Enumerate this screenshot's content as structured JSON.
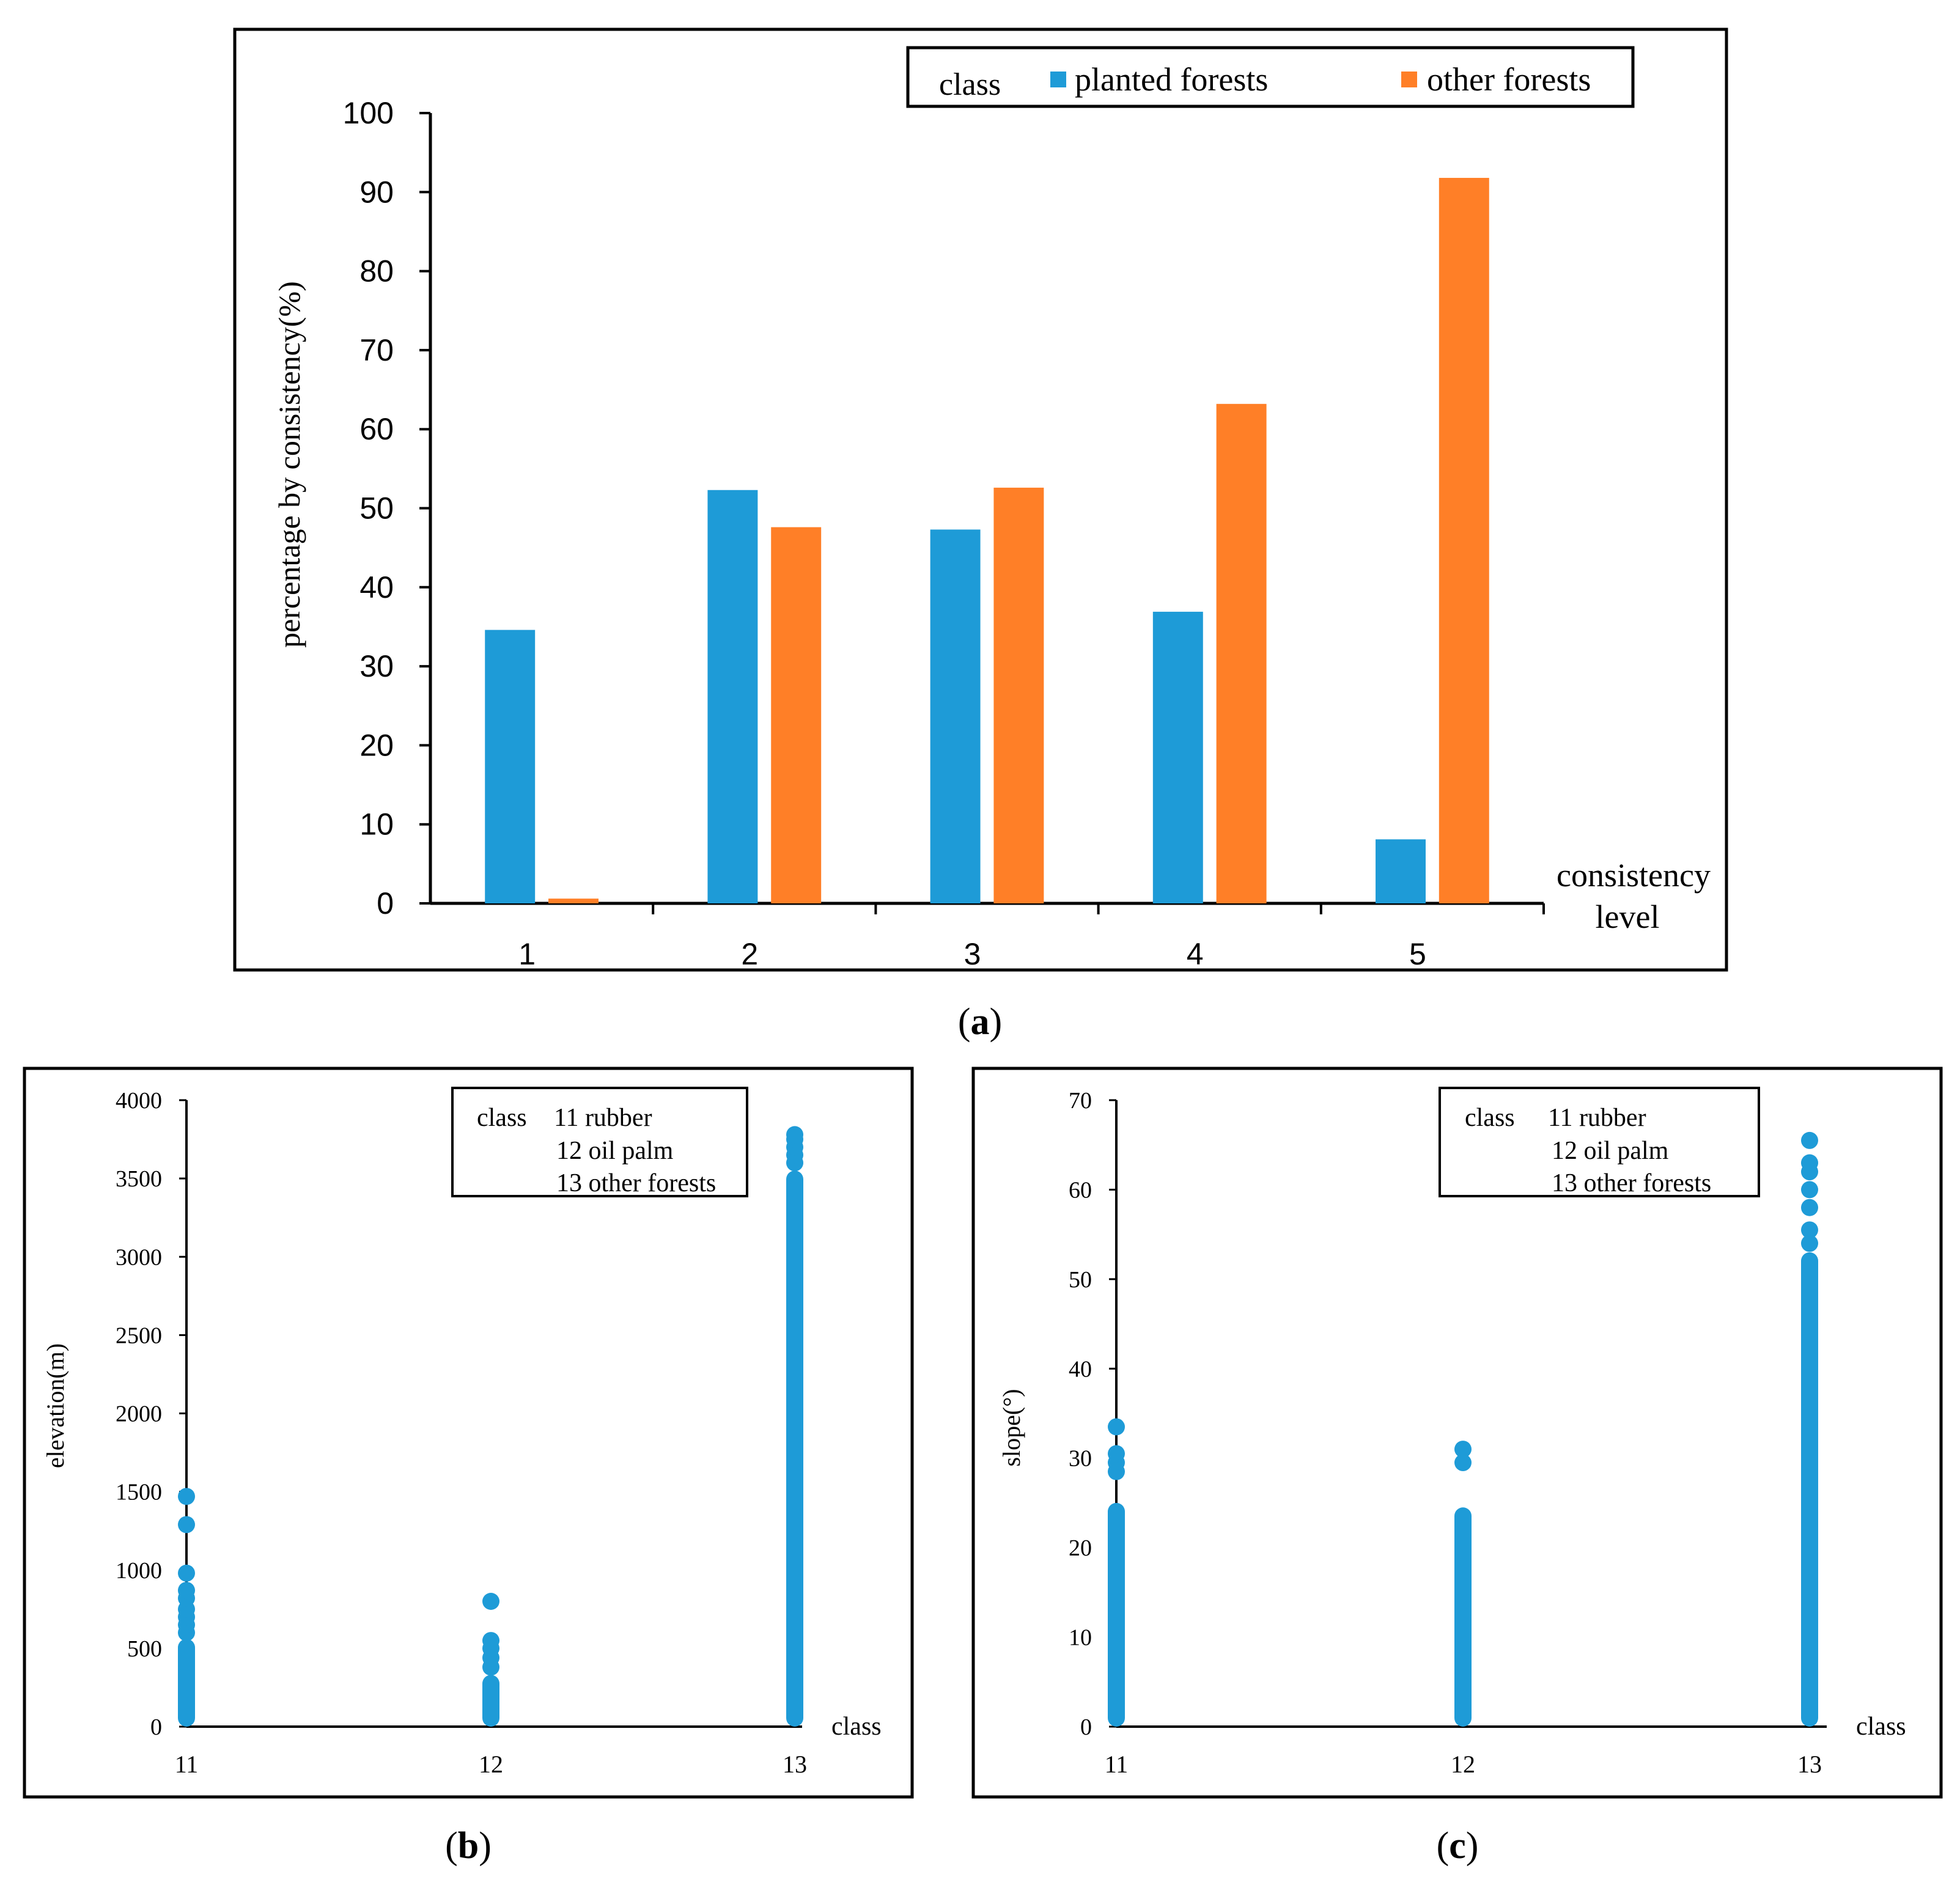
{
  "colors": {
    "planted": "#1E9BD7",
    "other": "#FF7F27",
    "point": "#1E9BD7",
    "axis": "#000000"
  },
  "chart_data": [
    {
      "id": "a",
      "panel_label": "a",
      "type": "bar",
      "title": "",
      "ylabel": "percentage by consistency(%)",
      "xlabel_line1": "consistency",
      "xlabel_line2": "level",
      "categories": [
        "1",
        "2",
        "3",
        "4",
        "5"
      ],
      "ylim": [
        0,
        100
      ],
      "yticks": [
        0,
        10,
        20,
        30,
        40,
        50,
        60,
        70,
        80,
        90,
        100
      ],
      "legend_title": "class",
      "legend_position": "top-right",
      "series": [
        {
          "name": "planted forests",
          "color_key": "planted",
          "values": [
            34.6,
            52.3,
            47.3,
            36.9,
            8.1
          ]
        },
        {
          "name": "other forests",
          "color_key": "other",
          "values": [
            0.6,
            47.6,
            52.6,
            63.2,
            91.8
          ]
        }
      ],
      "grid": false
    },
    {
      "id": "b",
      "panel_label": "b",
      "type": "scatter",
      "ylabel": "elevation(m)",
      "xlabel": "class",
      "categories": [
        "11",
        "12",
        "13"
      ],
      "ylim": [
        0,
        4000
      ],
      "yticks": [
        0,
        500,
        1000,
        1500,
        2000,
        2500,
        3000,
        3500,
        4000
      ],
      "legend_title": "class",
      "legend_entries": [
        "11 rubber",
        "12 oil palm",
        "13 other forests"
      ],
      "legend_position": "top-right",
      "grid": false,
      "series": [
        {
          "category": "11",
          "min": 0,
          "dense_max": 560,
          "outliers": [
            600,
            650,
            700,
            750,
            820,
            870,
            980,
            1290,
            1470
          ]
        },
        {
          "category": "12",
          "min": 0,
          "dense_max": 330,
          "outliers": [
            380,
            440,
            500,
            550,
            800
          ]
        },
        {
          "category": "13",
          "min": 0,
          "dense_max": 3550,
          "outliers": [
            3600,
            3650,
            3700,
            3750,
            3780
          ]
        }
      ]
    },
    {
      "id": "c",
      "panel_label": "c",
      "type": "scatter",
      "ylabel": "slope(°)",
      "xlabel": "class",
      "categories": [
        "11",
        "12",
        "13"
      ],
      "ylim": [
        0,
        70
      ],
      "yticks": [
        0,
        10,
        20,
        30,
        40,
        50,
        60,
        70
      ],
      "legend_title": "class",
      "legend_entries": [
        "11 rubber",
        "12 oil palm",
        "13 other forests"
      ],
      "legend_position": "top-right",
      "grid": false,
      "series": [
        {
          "category": "11",
          "min": 0,
          "dense_max": 25,
          "outliers": [
            28.5,
            29.5,
            30.5,
            33.5
          ]
        },
        {
          "category": "12",
          "min": 0,
          "dense_max": 24.5,
          "outliers": [
            29.5,
            31
          ]
        },
        {
          "category": "13",
          "min": 0,
          "dense_max": 53,
          "outliers": [
            54,
            55.5,
            58,
            60,
            62,
            63,
            65.5
          ]
        }
      ]
    }
  ]
}
